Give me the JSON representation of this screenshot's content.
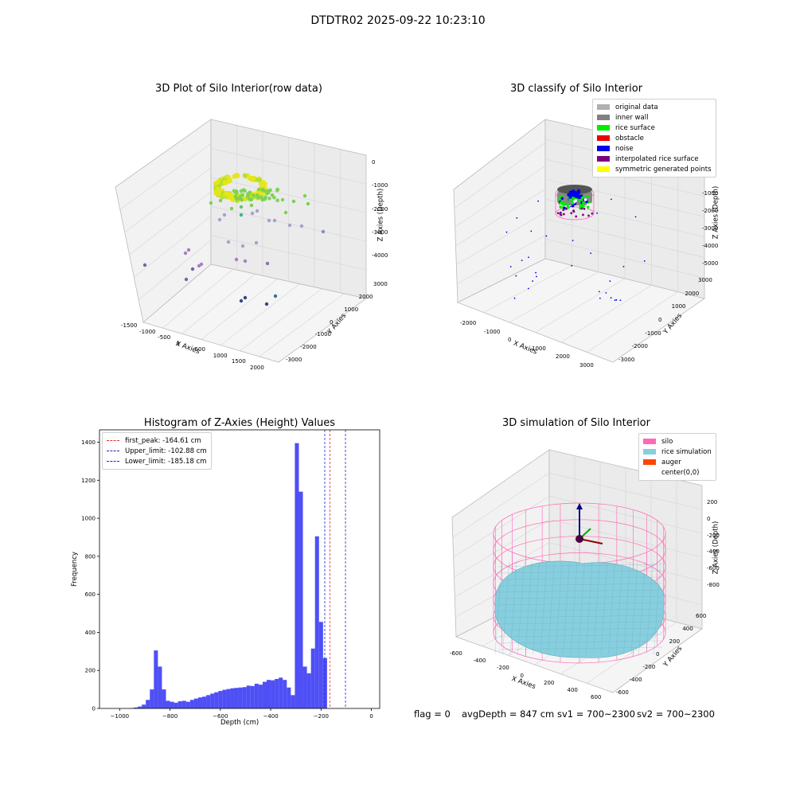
{
  "suptitle": "DTDTR02 2025-09-22 10:23:10",
  "footer": {
    "flag": "flag = 0",
    "avg_depth": "avgDepth = 847 cm",
    "sv1": "sv1 = 700~2300",
    "sv2": "sv2 = 700~2300"
  },
  "colors": {
    "hist_bar": "#3030f5",
    "first_peak": "#e03030",
    "limits": "#2020d0",
    "silo": "#ff69b4",
    "rice_sim": "#87cedf",
    "auger": "#ff4500",
    "original": "#b0b0b0",
    "inner_wall": "#808080",
    "rice_surface": "#00ee00",
    "obstacle": "#ee0000",
    "noise": "#0000ee",
    "interpolated": "#800080",
    "symmetric": "#ffff00"
  },
  "chart_data": [
    {
      "type": "scatter",
      "title": "3D Plot of Silo Interior(row data)",
      "xlabel": "X Axies",
      "ylabel": "Y Axies",
      "zlabel": "Z Axies (Depth)",
      "x_ticks": [
        "-1500",
        "-1000",
        "-500",
        "0",
        "500",
        "1000",
        "1500",
        "2000"
      ],
      "y_ticks": [
        "-3000",
        "-2000",
        "-1000",
        "0",
        "1000",
        "2000",
        "3000"
      ],
      "z_ticks": [
        "0",
        "-1000",
        "-2000",
        "-3000",
        "-4000"
      ],
      "colormap": "viridis"
    },
    {
      "type": "scatter",
      "title": "3D classify of Silo Interior",
      "xlabel": "X Axies",
      "ylabel": "Y Axies",
      "zlabel": "Z Axies (Depth)",
      "x_ticks": [
        "-2000",
        "-1000",
        "0",
        "1000",
        "2000",
        "3000"
      ],
      "y_ticks": [
        "-3000",
        "-2000",
        "-1000",
        "0",
        "1000",
        "2000",
        "3000"
      ],
      "z_ticks": [
        "1000",
        "0",
        "-1000",
        "-2000",
        "-3000",
        "-4000",
        "-5000"
      ],
      "legend": [
        "original data",
        "inner wall",
        "rice surface",
        "obstacle",
        "noise",
        "interpolated rice surface",
        "symmetric generated points"
      ]
    },
    {
      "type": "bar",
      "title": "Histogram of Z-Axies (Height) Values",
      "xlabel": "Depth (cm)",
      "ylabel": "Frequency",
      "xlim": [
        -1080,
        33
      ],
      "ylim": [
        0,
        1465
      ],
      "x_ticks": [
        -1000,
        -800,
        -600,
        -400,
        -200,
        0
      ],
      "y_ticks": [
        0,
        200,
        400,
        600,
        800,
        1000,
        1200,
        1400
      ],
      "bin_width": 16,
      "bin_start": -960,
      "values": [
        2,
        5,
        10,
        20,
        45,
        100,
        305,
        220,
        100,
        40,
        35,
        30,
        38,
        40,
        35,
        45,
        52,
        58,
        62,
        70,
        78,
        85,
        92,
        98,
        102,
        106,
        108,
        110,
        112,
        120,
        118,
        130,
        125,
        140,
        150,
        148,
        155,
        162,
        150,
        110,
        70,
        1395,
        1140,
        220,
        185,
        315,
        905,
        455,
        265
      ],
      "vlines": [
        {
          "label": "first_peak: -164.61 cm",
          "x": -164.61,
          "color": "#e03030"
        },
        {
          "label": "Upper_limit: -102.88 cm",
          "x": -102.88,
          "color": "#2020d0"
        },
        {
          "label": "Lower_limit: -185.18 cm",
          "x": -185.18,
          "color": "#2020d0"
        }
      ]
    },
    {
      "type": "scatter",
      "title": "3D simulation of Silo Interior",
      "xlabel": "X Axies",
      "ylabel": "Y Axies",
      "zlabel": "Z Axies (Depth)",
      "x_ticks": [
        "-600",
        "-400",
        "-200",
        "0",
        "200",
        "400",
        "600"
      ],
      "y_ticks": [
        "-600",
        "-400",
        "-200",
        "0",
        "200",
        "400",
        "600"
      ],
      "z_ticks": [
        "200",
        "0",
        "-200",
        "-400",
        "-600",
        "-800"
      ],
      "legend": [
        "silo",
        "rice simulation",
        "auger",
        "center(0,0)"
      ]
    }
  ]
}
